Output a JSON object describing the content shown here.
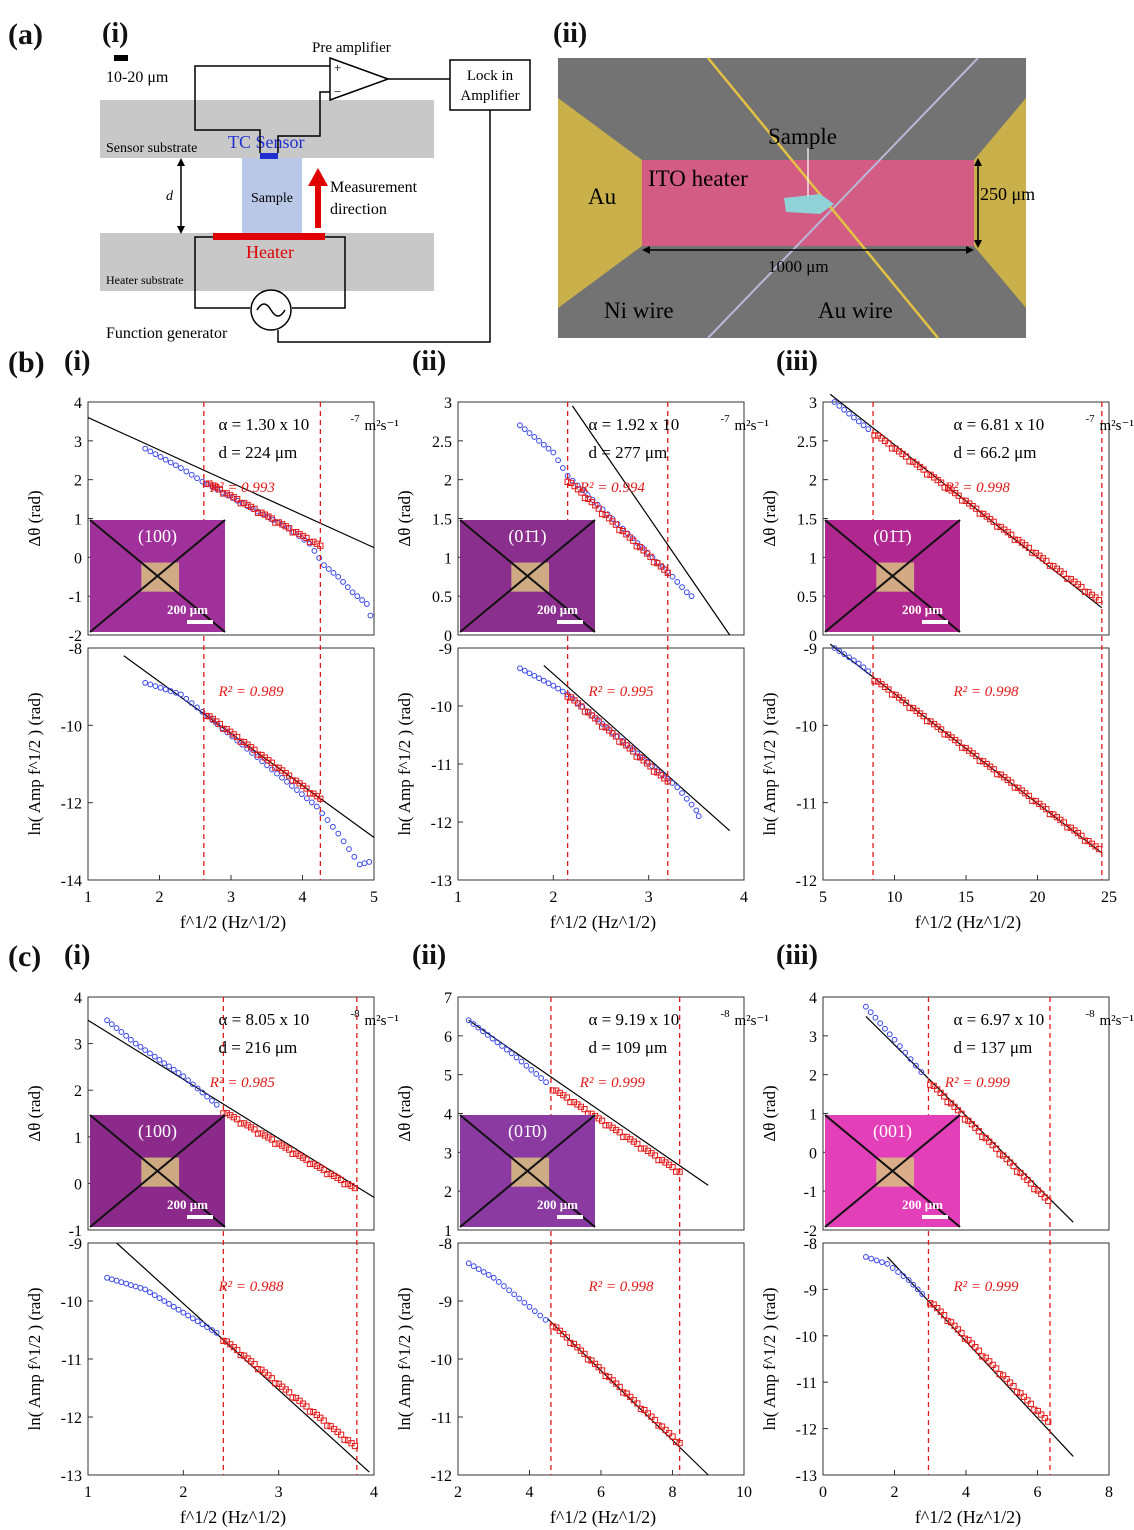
{
  "labels": {
    "a": "(a)",
    "a_i": "(i)",
    "a_ii": "(ii)",
    "b": "(b)",
    "b_i": "(i)",
    "b_ii": "(ii)",
    "b_iii": "(iii)",
    "c": "(c)",
    "c_i": "(i)",
    "c_ii": "(ii)",
    "c_iii": "(iii)"
  },
  "schematic": {
    "scale": "10-20 μm",
    "pre_amp": "Pre amplifier",
    "lock_in_1": "Lock in",
    "lock_in_2": "Amplifier",
    "sensor_sub": "Sensor substrate",
    "tc_sensor": "TC Sensor",
    "sample": "Sample",
    "meas_1": "Measurement",
    "meas_2": "direction",
    "d": "d",
    "heater": "Heater",
    "heater_sub": "Heater substrate",
    "func_gen": "Function generator",
    "plus": "+",
    "minus": "−"
  },
  "device": {
    "sample": "Sample",
    "ito": "ITO heater",
    "au": "Au",
    "w250": "250 μm",
    "w1000": "1000 μm",
    "ni": "Ni wire",
    "auw": "Au wire"
  },
  "axes_text": {
    "dtheta": "Δθ (rad)",
    "lnamp": "ln( Amp f^1/2 ) (rad)",
    "xlab": "f^1/2 (Hz^1/2)",
    "scalebar": "200 μm"
  },
  "chart_data": [
    {
      "id": "b_i",
      "type": "scatter",
      "top": {
        "ylim": [
          -2,
          4
        ],
        "yticks": [
          "4",
          "3",
          "2",
          "1",
          "0",
          "-1",
          "-2"
        ],
        "alpha": "α = 1.30 x 10",
        "alpha_exp": "-7",
        "d": "d = 224 μm",
        "r2": "R² = 0.993",
        "inset": "(100)",
        "line": [
          [
            1,
            3.6
          ],
          [
            5,
            0.25
          ]
        ],
        "blue": [
          [
            1.8,
            2.8
          ],
          [
            2.3,
            2.3
          ],
          [
            2.6,
            1.95
          ],
          [
            3.8,
            0.75
          ],
          [
            4.1,
            0.35
          ],
          [
            4.3,
            -0.2
          ],
          [
            4.5,
            -0.5
          ],
          [
            4.7,
            -0.9
          ],
          [
            4.9,
            -1.2
          ],
          [
            5,
            -1.8
          ]
        ],
        "red": [
          [
            2.65,
            1.95
          ],
          [
            4.25,
            0.3
          ]
        ]
      },
      "bottom": {
        "ylim": [
          -14,
          -8
        ],
        "yticks": [
          "-8",
          "-10",
          "-12",
          "-14"
        ],
        "r2": "R² = 0.989",
        "line": [
          [
            1.5,
            -8.2
          ],
          [
            5,
            -12.9
          ]
        ],
        "blue": [
          [
            1.8,
            -8.9
          ],
          [
            2.3,
            -9.2
          ],
          [
            2.6,
            -9.65
          ],
          [
            4.2,
            -12.1
          ],
          [
            4.5,
            -12.8
          ],
          [
            4.8,
            -13.6
          ],
          [
            5,
            -13.5
          ]
        ],
        "red": [
          [
            2.65,
            -9.7
          ],
          [
            4.25,
            -11.9
          ]
        ]
      },
      "xlim": [
        1,
        5
      ],
      "xticks": [
        "1",
        "2",
        "3",
        "4",
        "5"
      ],
      "vlines": [
        2.62,
        4.25
      ]
    },
    {
      "id": "b_ii",
      "type": "scatter",
      "top": {
        "ylim": [
          0,
          3
        ],
        "yticks": [
          "3",
          "2.5",
          "2",
          "1.5",
          "1",
          "0.5",
          "0"
        ],
        "alpha": "α = 1.92 x 10",
        "alpha_exp": "-7",
        "d": "d = 277 μm",
        "r2": "R² = 0.994",
        "inset": "(01̄1)",
        "line": [
          [
            2.2,
            2.95
          ],
          [
            3.85,
            0.0
          ]
        ],
        "blue": [
          [
            1.65,
            2.7
          ],
          [
            2.0,
            2.35
          ],
          [
            2.15,
            2.05
          ],
          [
            3.25,
            0.75
          ],
          [
            3.4,
            0.55
          ],
          [
            3.5,
            0.45
          ]
        ],
        "red": [
          [
            2.15,
            2.0
          ],
          [
            3.2,
            0.8
          ]
        ]
      },
      "bottom": {
        "ylim": [
          -13,
          -9
        ],
        "yticks": [
          "-9",
          "-10",
          "-11",
          "-12",
          "-13"
        ],
        "r2": "R² = 0.995",
        "line": [
          [
            1.9,
            -9.3
          ],
          [
            3.85,
            -12.15
          ]
        ],
        "blue": [
          [
            1.65,
            -9.35
          ],
          [
            2.0,
            -9.65
          ],
          [
            2.15,
            -9.8
          ],
          [
            3.3,
            -11.4
          ],
          [
            3.5,
            -11.8
          ],
          [
            3.55,
            -12.0
          ]
        ],
        "red": [
          [
            2.15,
            -9.8
          ],
          [
            3.2,
            -11.3
          ]
        ]
      },
      "xlim": [
        1,
        4
      ],
      "xticks": [
        "1",
        "2",
        "3",
        "4"
      ],
      "vlines": [
        2.15,
        3.2
      ]
    },
    {
      "id": "b_iii",
      "type": "scatter",
      "top": {
        "ylim": [
          0,
          3
        ],
        "yticks": [
          "3",
          "2.5",
          "2",
          "1.5",
          "1",
          "0.5",
          "0"
        ],
        "alpha": "α = 6.81 x 10",
        "alpha_exp": "-7",
        "d": "d = 66.2 μm",
        "r2": "R² = 0.998",
        "inset": "(01̄1̄)",
        "line": [
          [
            5.5,
            3.1
          ],
          [
            24.5,
            0.35
          ]
        ],
        "blue": [
          [
            5.8,
            3.0
          ],
          [
            7.5,
            2.75
          ],
          [
            8.5,
            2.6
          ]
        ],
        "red": [
          [
            8.6,
            2.6
          ],
          [
            24.3,
            0.45
          ]
        ]
      },
      "bottom": {
        "ylim": [
          -12,
          -9
        ],
        "yticks": [
          "-9",
          "-10",
          "-11",
          "-12"
        ],
        "r2": "R² = 0.998",
        "line": [
          [
            5.5,
            -8.95
          ],
          [
            24.5,
            -11.65
          ]
        ],
        "blue": [
          [
            5.8,
            -9.0
          ],
          [
            7.5,
            -9.2
          ],
          [
            8.5,
            -9.35
          ]
        ],
        "red": [
          [
            8.6,
            -9.4
          ],
          [
            24.3,
            -11.6
          ]
        ]
      },
      "xlim": [
        5,
        25
      ],
      "xticks": [
        "5",
        "10",
        "15",
        "20",
        "25"
      ],
      "vlines": [
        8.5,
        24.5
      ]
    },
    {
      "id": "c_i",
      "type": "scatter",
      "top": {
        "ylim": [
          -1,
          4
        ],
        "yticks": [
          "4",
          "3",
          "2",
          "1",
          "0",
          "-1"
        ],
        "alpha": "α = 8.05 x 10",
        "alpha_exp": "-8",
        "d": "d = 216 μm",
        "r2": "R² = 0.985",
        "inset": "(100)",
        "line": [
          [
            1,
            3.5
          ],
          [
            4,
            -0.3
          ]
        ],
        "blue": [
          [
            1.2,
            3.5
          ],
          [
            1.5,
            3.0
          ],
          [
            2.0,
            2.3
          ],
          [
            2.4,
            1.6
          ]
        ],
        "red": [
          [
            2.42,
            1.55
          ],
          [
            3.8,
            -0.1
          ]
        ]
      },
      "bottom": {
        "ylim": [
          -13,
          -9
        ],
        "yticks": [
          "-9",
          "-10",
          "-11",
          "-12",
          "-13"
        ],
        "r2": "R² = 0.988",
        "line": [
          [
            1.3,
            -9.0
          ],
          [
            3.95,
            -12.95
          ]
        ],
        "blue": [
          [
            1.2,
            -9.6
          ],
          [
            1.6,
            -9.8
          ],
          [
            2.0,
            -10.2
          ],
          [
            2.4,
            -10.6
          ]
        ],
        "red": [
          [
            2.42,
            -10.65
          ],
          [
            3.8,
            -12.5
          ]
        ]
      },
      "xlim": [
        1,
        4
      ],
      "xticks": [
        "1",
        "2",
        "3",
        "4"
      ],
      "vlines": [
        2.42,
        3.82
      ]
    },
    {
      "id": "c_ii",
      "type": "scatter",
      "top": {
        "ylim": [
          1,
          7
        ],
        "yticks": [
          "7",
          "6",
          "5",
          "4",
          "3",
          "2",
          "1"
        ],
        "alpha": "α = 9.19 x 10",
        "alpha_exp": "-8",
        "d": "d = 109 μm",
        "r2": "R² = 0.999",
        "inset": "(01̄0)",
        "line": [
          [
            2.3,
            6.4
          ],
          [
            9,
            2.15
          ]
        ],
        "blue": [
          [
            2.3,
            6.4
          ],
          [
            3.5,
            5.55
          ],
          [
            4.6,
            4.7
          ]
        ],
        "red": [
          [
            4.65,
            4.65
          ],
          [
            8.2,
            2.5
          ]
        ]
      },
      "bottom": {
        "ylim": [
          -12,
          -8
        ],
        "yticks": [
          "-8",
          "-9",
          "-10",
          "-11",
          "-12"
        ],
        "r2": "R² = 0.998",
        "line": [
          [
            4.5,
            -9.3
          ],
          [
            9,
            -12.0
          ]
        ],
        "blue": [
          [
            2.3,
            -8.35
          ],
          [
            3.0,
            -8.6
          ],
          [
            4.0,
            -9.1
          ],
          [
            4.6,
            -9.4
          ]
        ],
        "red": [
          [
            4.65,
            -9.4
          ],
          [
            8.2,
            -11.45
          ]
        ]
      },
      "xlim": [
        2,
        10
      ],
      "xticks": [
        "2",
        "4",
        "6",
        "8",
        "10"
      ],
      "vlines": [
        4.6,
        8.2
      ]
    },
    {
      "id": "c_iii",
      "type": "scatter",
      "top": {
        "ylim": [
          -2,
          4
        ],
        "yticks": [
          "4",
          "3",
          "2",
          "1",
          "0",
          "-1",
          "-2"
        ],
        "alpha": "α = 6.97 x 10",
        "alpha_exp": "-8",
        "d": "d = 137 μm",
        "r2": "R² = 0.999",
        "inset": "(001)",
        "line": [
          [
            1.2,
            3.5
          ],
          [
            7,
            -1.8
          ]
        ],
        "blue": [
          [
            1.2,
            3.75
          ],
          [
            2.0,
            2.9
          ],
          [
            2.9,
            1.9
          ]
        ],
        "red": [
          [
            3.0,
            1.8
          ],
          [
            6.3,
            -1.25
          ]
        ]
      },
      "bottom": {
        "ylim": [
          -13,
          -8
        ],
        "yticks": [
          "-8",
          "-9",
          "-10",
          "-11",
          "-12",
          "-13"
        ],
        "r2": "R² = 0.999",
        "line": [
          [
            1.8,
            -8.3
          ],
          [
            7,
            -12.6
          ]
        ],
        "blue": [
          [
            1.2,
            -8.3
          ],
          [
            1.8,
            -8.45
          ],
          [
            2.4,
            -8.8
          ],
          [
            2.9,
            -9.2
          ]
        ],
        "red": [
          [
            3.0,
            -9.25
          ],
          [
            6.3,
            -11.85
          ]
        ]
      },
      "xlim": [
        0,
        8
      ],
      "xticks": [
        "0",
        "2",
        "4",
        "6",
        "8"
      ],
      "vlines": [
        2.95,
        6.35
      ]
    }
  ]
}
